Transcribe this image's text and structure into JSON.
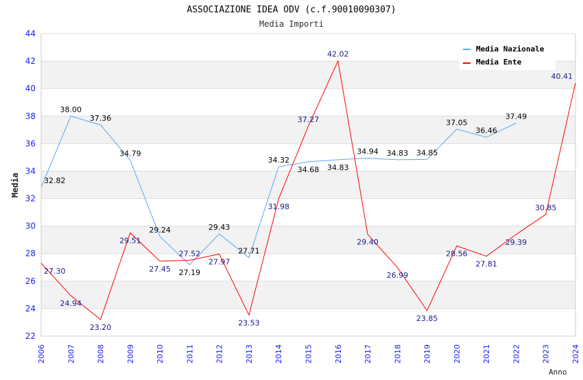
{
  "chart_data": {
    "type": "line",
    "title": "ASSOCIAZIONE IDEA ODV (c.f.90010090307)",
    "subtitle": "Media Importi",
    "xlabel": "Anno",
    "ylabel": "Media",
    "ylim": [
      22,
      44
    ],
    "yticks": [
      22,
      24,
      26,
      28,
      30,
      32,
      34,
      36,
      38,
      40,
      42,
      44
    ],
    "x": [
      2006,
      2007,
      2008,
      2009,
      2010,
      2011,
      2012,
      2013,
      2014,
      2015,
      2016,
      2017,
      2018,
      2019,
      2020,
      2021,
      2022,
      2023,
      2024
    ],
    "legend_position": "top-right",
    "grid": true,
    "series": [
      {
        "name": "Media Nazionale",
        "color": "#5aa5f0",
        "label_color": "#000000",
        "values": [
          32.82,
          38.0,
          37.36,
          34.79,
          29.24,
          27.19,
          29.43,
          27.71,
          34.32,
          34.68,
          34.83,
          34.94,
          34.83,
          34.85,
          37.05,
          36.46,
          37.49,
          null,
          null
        ]
      },
      {
        "name": "Media Ente",
        "color": "#ff0000",
        "label_color": "#1a1a8c",
        "values": [
          27.3,
          24.94,
          23.2,
          29.51,
          27.45,
          27.52,
          27.97,
          23.53,
          31.98,
          37.27,
          42.02,
          29.4,
          26.99,
          23.85,
          28.56,
          27.81,
          29.39,
          30.85,
          40.41
        ]
      }
    ]
  }
}
